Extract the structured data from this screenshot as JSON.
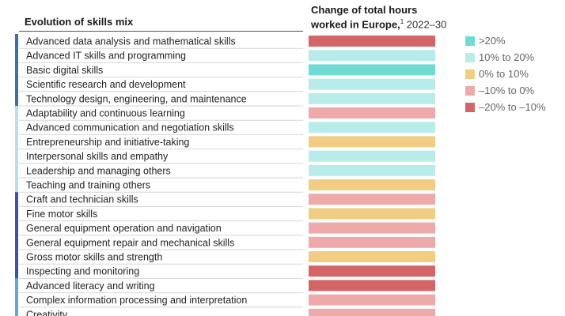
{
  "header": {
    "left_title": "Evolution of skills mix",
    "right_title_line1": "Change of total hours",
    "right_title_line2": "worked in Europe,",
    "right_title_sup": "1",
    "right_title_years": "2022–30"
  },
  "legend": [
    {
      "label": ">20%",
      "color": "#6fdbd3"
    },
    {
      "label": "10% to 20%",
      "color": "#b8ecea"
    },
    {
      "label": "0% to 10%",
      "color": "#f0cd83"
    },
    {
      "label": "–10% to 0%",
      "color": "#eeaaab"
    },
    {
      "label": "–20% to –10%",
      "color": "#d46567"
    }
  ],
  "chart_data": {
    "type": "table",
    "columns": [
      "Evolution of skills mix",
      "Change of total hours worked in Europe, 2022–30"
    ],
    "groups": [
      {
        "color": "#3a72a8",
        "rows": [
          0,
          1,
          2,
          3,
          4
        ]
      },
      {
        "color": "#b3e1ef",
        "rows": [
          5,
          6,
          7,
          8,
          9,
          10
        ]
      },
      {
        "color": "#3b53b0",
        "rows": [
          11,
          12,
          13,
          14,
          15,
          16
        ]
      },
      {
        "color": "#5aabd6",
        "rows": [
          17,
          18,
          19
        ]
      }
    ],
    "rows": [
      {
        "skill": "Advanced data analysis and mathematical skills",
        "category": "–20% to –10%"
      },
      {
        "skill": "Advanced IT skills and programming",
        "category": "10% to 20%"
      },
      {
        "skill": "Basic digital skills",
        "category": ">20%"
      },
      {
        "skill": "Scientific research and development",
        "category": "10% to 20%"
      },
      {
        "skill": "Technology design, engineering, and maintenance",
        "category": "10% to 20%"
      },
      {
        "skill": "Adaptability and continuous learning",
        "category": "–10% to 0%"
      },
      {
        "skill": "Advanced communication and negotiation skills",
        "category": "10% to 20%"
      },
      {
        "skill": "Entrepreneurship and initiative-taking",
        "category": "0% to 10%"
      },
      {
        "skill": "Interpersonal skills and empathy",
        "category": "10% to 20%"
      },
      {
        "skill": "Leadership and managing others",
        "category": "10% to 20%"
      },
      {
        "skill": "Teaching and training others",
        "category": "0% to 10%"
      },
      {
        "skill": "Craft and technician skills",
        "category": "–10% to 0%"
      },
      {
        "skill": "Fine motor skills",
        "category": "0% to 10%"
      },
      {
        "skill": "General equipment operation and navigation",
        "category": "–10% to 0%"
      },
      {
        "skill": "General equipment repair and mechanical skills",
        "category": "–10% to 0%"
      },
      {
        "skill": "Gross motor skills and strength",
        "category": "0% to 10%"
      },
      {
        "skill": "Inspecting and monitoring",
        "category": "–20% to –10%"
      },
      {
        "skill": "Advanced literacy and writing",
        "category": "–20% to –10%"
      },
      {
        "skill": "Complex information processing and interpretation",
        "category": "–10% to 0%"
      },
      {
        "skill": "Creativity",
        "category": "–10% to 0%"
      }
    ]
  }
}
